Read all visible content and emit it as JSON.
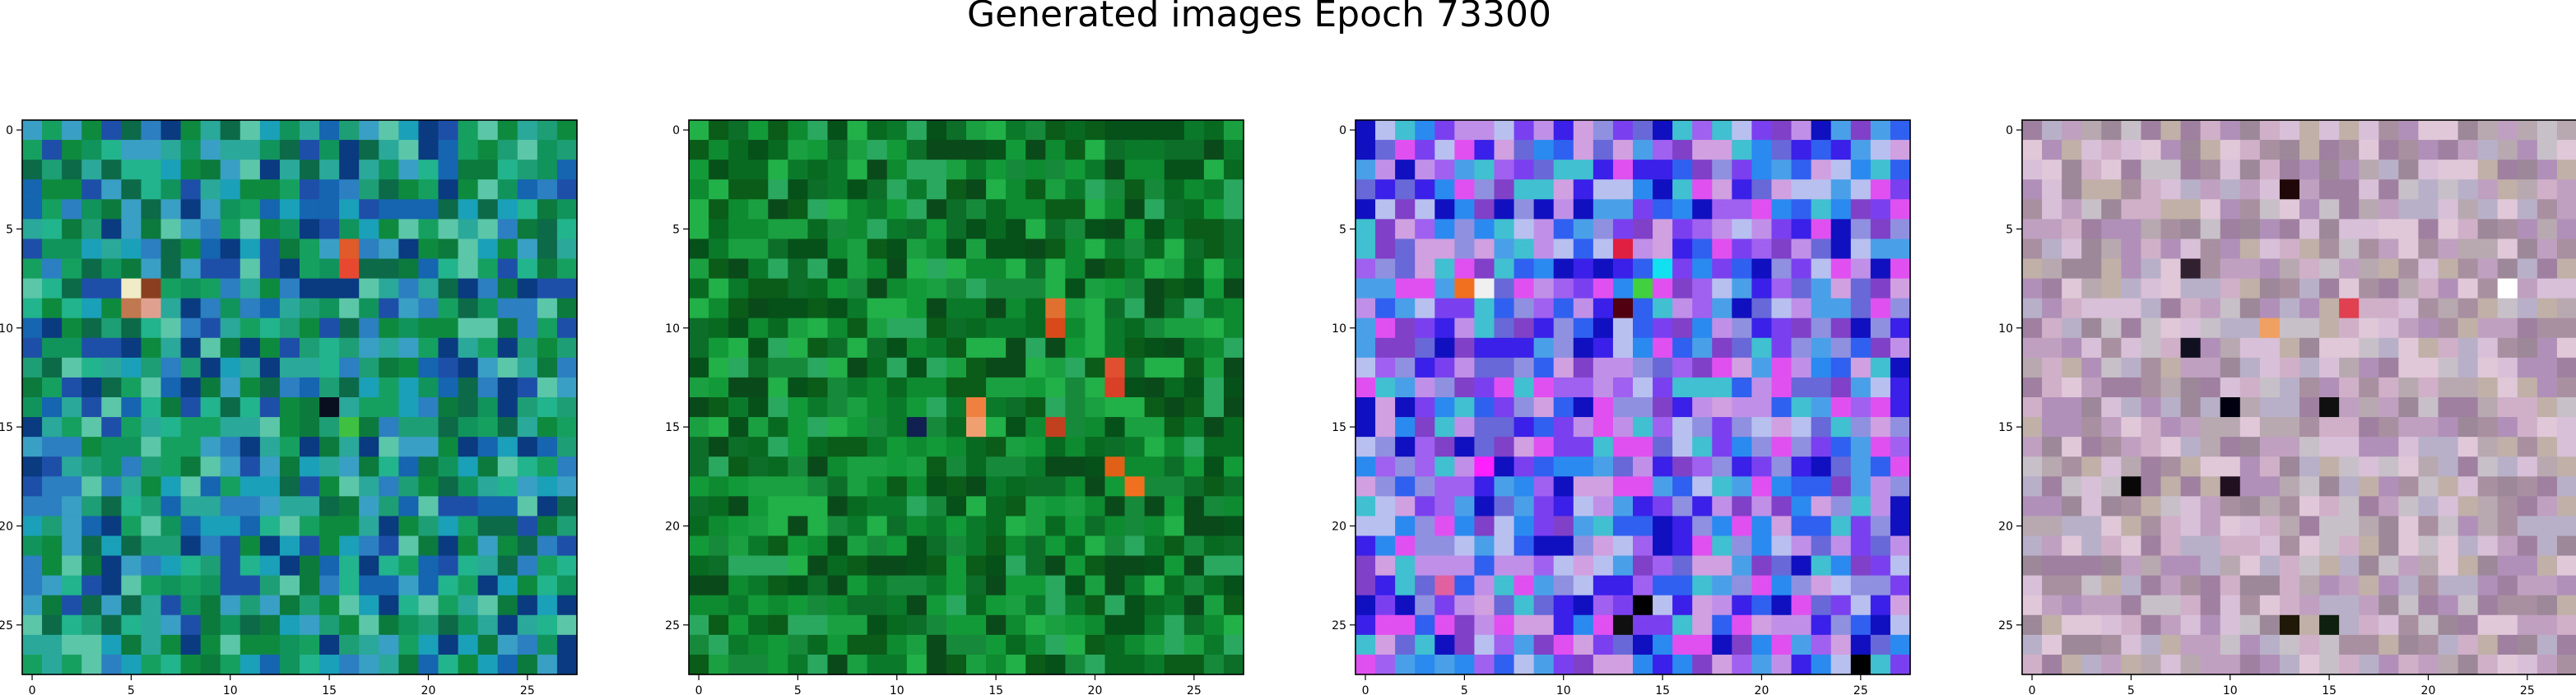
{
  "figure": {
    "title": "Generated images Epoch 73300",
    "panels": [
      {
        "name": "generated-image-1",
        "palette": [
          "#0e8a3e",
          "#16a060",
          "#1e9e74",
          "#11935c",
          "#0b7a3c",
          "#2aa89a",
          "#3a9fc4",
          "#2c7fc0",
          "#1565b0",
          "#1e4fa8",
          "#0a3a80",
          "#22b48c",
          "#5cc6a8",
          "#1aa0b8",
          "#0c6a48"
        ],
        "accents": [
          {
            "x": 16,
            "y": 6,
            "color": "#e05a2a"
          },
          {
            "x": 16,
            "y": 7,
            "color": "#e84830"
          },
          {
            "x": 5,
            "y": 8,
            "color": "#f0ecc8"
          },
          {
            "x": 6,
            "y": 8,
            "color": "#8a4020"
          },
          {
            "x": 5,
            "y": 9,
            "color": "#c07850"
          },
          {
            "x": 6,
            "y": 9,
            "color": "#e0a090"
          },
          {
            "x": 15,
            "y": 14,
            "color": "#0a0f20"
          },
          {
            "x": 16,
            "y": 15,
            "color": "#40c040"
          }
        ]
      },
      {
        "name": "generated-image-2",
        "palette": [
          "#0a7a2a",
          "#0e8a30",
          "#129a38",
          "#086a20",
          "#0a5c18",
          "#1aa040",
          "#22b048",
          "#0c6e28",
          "#06501a",
          "#168a3a",
          "#2aa860",
          "#0a4a1a"
        ],
        "accents": [
          {
            "x": 18,
            "y": 9,
            "color": "#e07030"
          },
          {
            "x": 18,
            "y": 10,
            "color": "#d84a1a"
          },
          {
            "x": 21,
            "y": 12,
            "color": "#e05030"
          },
          {
            "x": 21,
            "y": 13,
            "color": "#d84028"
          },
          {
            "x": 14,
            "y": 14,
            "color": "#f08040"
          },
          {
            "x": 14,
            "y": 15,
            "color": "#f0a070"
          },
          {
            "x": 18,
            "y": 15,
            "color": "#c04020"
          },
          {
            "x": 21,
            "y": 17,
            "color": "#e06018"
          },
          {
            "x": 22,
            "y": 18,
            "color": "#f07020"
          },
          {
            "x": 11,
            "y": 15,
            "color": "#102050"
          }
        ]
      },
      {
        "name": "generated-image-3",
        "palette": [
          "#3a20e8",
          "#7a40f0",
          "#a060f0",
          "#c090e8",
          "#2a8af0",
          "#4aa0e8",
          "#9090e0",
          "#e050f0",
          "#1010c0",
          "#6868d8",
          "#b8c0f0",
          "#8040c8",
          "#40c0d0",
          "#d0a0e0",
          "#3060f0"
        ],
        "accents": [
          {
            "x": 6,
            "y": 8,
            "color": "#f0f0f0"
          },
          {
            "x": 5,
            "y": 8,
            "color": "#f07020"
          },
          {
            "x": 13,
            "y": 6,
            "color": "#e02040"
          },
          {
            "x": 13,
            "y": 9,
            "color": "#500010"
          },
          {
            "x": 15,
            "y": 7,
            "color": "#10e0f0"
          },
          {
            "x": 14,
            "y": 8,
            "color": "#40d040"
          },
          {
            "x": 14,
            "y": 24,
            "color": "#000000"
          },
          {
            "x": 13,
            "y": 25,
            "color": "#101010"
          },
          {
            "x": 25,
            "y": 27,
            "color": "#000000"
          },
          {
            "x": 6,
            "y": 17,
            "color": "#ff20ff"
          },
          {
            "x": 4,
            "y": 23,
            "color": "#e060a0"
          }
        ]
      },
      {
        "name": "generated-image-4",
        "palette": [
          "#c0a0c0",
          "#b090b8",
          "#d0b0c8",
          "#a890a0",
          "#c8c0c8",
          "#b8a8b0",
          "#d8c0d8",
          "#a080a0",
          "#c0b0a8",
          "#e0c8d8",
          "#9c8898",
          "#b8b0c8"
        ],
        "accents": [
          {
            "x": 13,
            "y": 3,
            "color": "#200808"
          },
          {
            "x": 8,
            "y": 11,
            "color": "#101020"
          },
          {
            "x": 10,
            "y": 14,
            "color": "#000010"
          },
          {
            "x": 15,
            "y": 14,
            "color": "#101010"
          },
          {
            "x": 5,
            "y": 18,
            "color": "#080808"
          },
          {
            "x": 10,
            "y": 18,
            "color": "#201020"
          },
          {
            "x": 8,
            "y": 7,
            "color": "#302030"
          },
          {
            "x": 15,
            "y": 25,
            "color": "#102010"
          },
          {
            "x": 13,
            "y": 25,
            "color": "#201808"
          },
          {
            "x": 12,
            "y": 10,
            "color": "#f0a060"
          },
          {
            "x": 16,
            "y": 9,
            "color": "#e04050"
          },
          {
            "x": 24,
            "y": 8,
            "color": "#ffffff"
          }
        ]
      }
    ],
    "tick_labels": [
      "0",
      "5",
      "10",
      "15",
      "20",
      "25"
    ]
  }
}
